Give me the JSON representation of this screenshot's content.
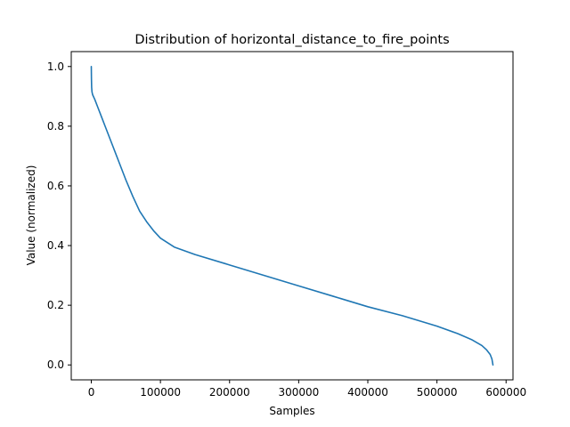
{
  "chart_data": {
    "type": "line",
    "title": "Distribution of horizontal_distance_to_fire_points",
    "xlabel": "Samples",
    "ylabel": "Value (normalized)",
    "xlim": [
      -29000,
      610000
    ],
    "ylim": [
      -0.05,
      1.05
    ],
    "xticks": [
      0,
      100000,
      200000,
      300000,
      400000,
      500000,
      600000
    ],
    "xtick_labels": [
      "0",
      "100000",
      "200000",
      "300000",
      "400000",
      "500000",
      "600000"
    ],
    "yticks": [
      0.0,
      0.2,
      0.4,
      0.6,
      0.8,
      1.0
    ],
    "ytick_labels": [
      "0.0",
      "0.2",
      "0.4",
      "0.6",
      "0.8",
      "1.0"
    ],
    "grid": false,
    "line_color": "#1f77b4",
    "series": [
      {
        "x": [
          0,
          200,
          500,
          1000,
          2000,
          5000,
          10000,
          15000,
          20000,
          30000,
          40000,
          50000,
          60000,
          70000,
          80000,
          90000,
          100000,
          120000,
          150000,
          200000,
          250000,
          300000,
          350000,
          400000,
          450000,
          500000,
          530000,
          550000,
          565000,
          572000,
          577000,
          579500,
          581000
        ],
        "y": [
          1.0,
          0.96,
          0.93,
          0.915,
          0.905,
          0.89,
          0.86,
          0.83,
          0.8,
          0.74,
          0.68,
          0.62,
          0.565,
          0.515,
          0.48,
          0.45,
          0.425,
          0.395,
          0.37,
          0.335,
          0.3,
          0.265,
          0.23,
          0.195,
          0.165,
          0.13,
          0.105,
          0.085,
          0.065,
          0.05,
          0.035,
          0.02,
          0.0
        ]
      }
    ]
  }
}
